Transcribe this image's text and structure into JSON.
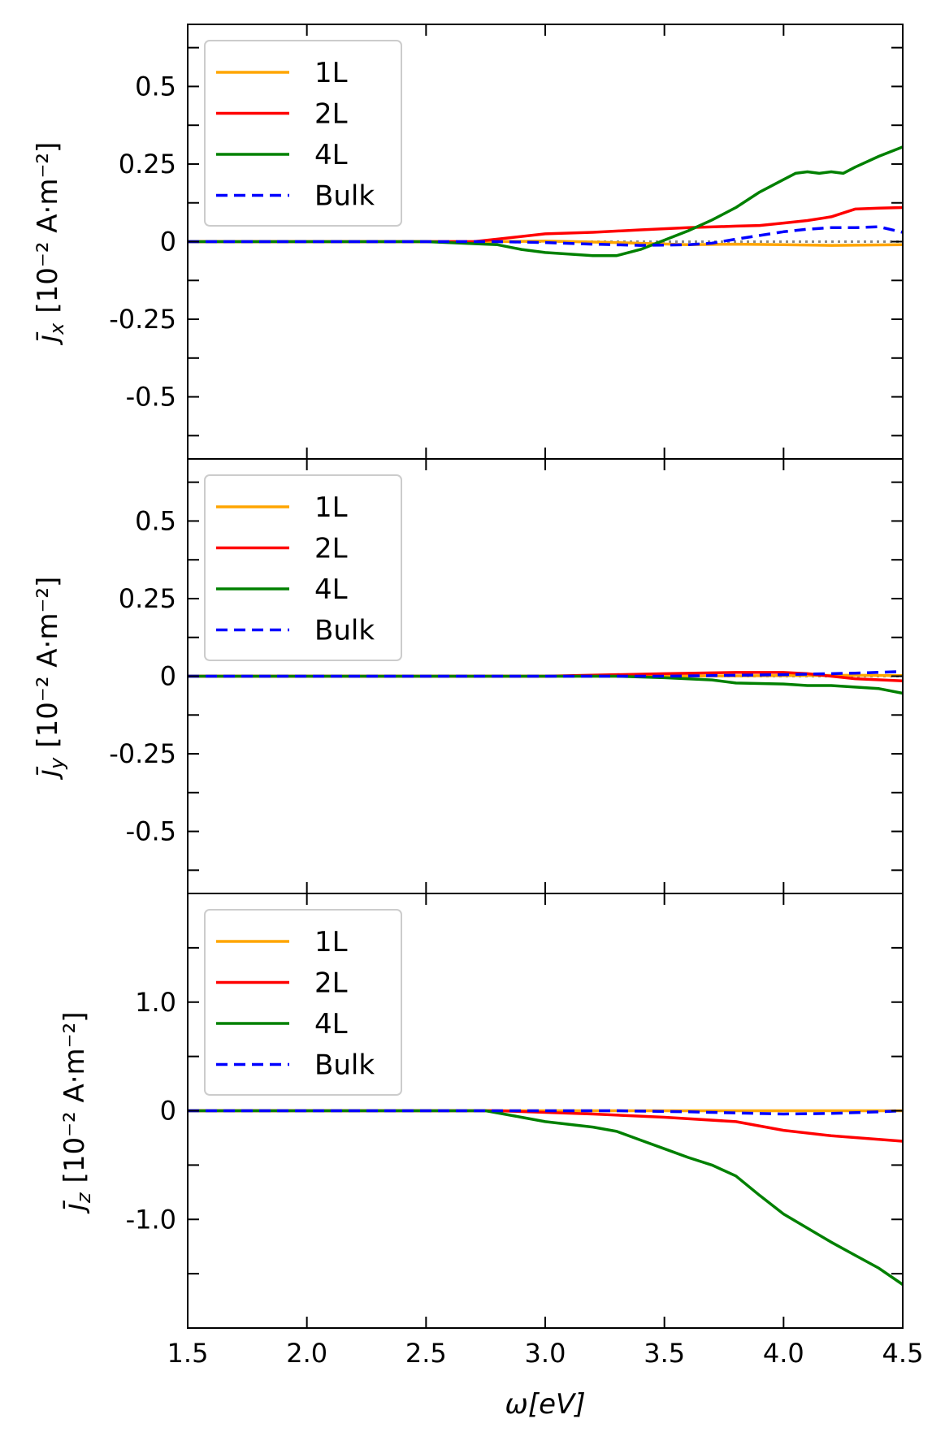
{
  "chart_data": [
    {
      "type": "line",
      "panel": "top",
      "ylabel": {
        "prefix": "j̄",
        "sub": "x",
        "text": "[10⁻² A·m⁻²]"
      },
      "xlim": [
        1.5,
        4.5
      ],
      "ylim": [
        -0.7,
        0.7
      ],
      "yticks": [
        -0.5,
        -0.25,
        0,
        0.25,
        0.5
      ],
      "ytick_labels": [
        "-0.5",
        "-0.25",
        "0",
        "0.25",
        "0.5"
      ],
      "legend": {
        "placement": "top-left",
        "entries": [
          "1L",
          "2L",
          "4L",
          "Bulk"
        ]
      },
      "series": [
        {
          "name": "1L",
          "color": "#FFA500",
          "style": "solid",
          "x": [
            1.5,
            2.5,
            2.8,
            3.0,
            3.3,
            3.6,
            3.8,
            4.0,
            4.2,
            4.5
          ],
          "values": [
            0,
            0,
            0,
            0.002,
            -0.003,
            -0.01,
            -0.008,
            -0.01,
            -0.012,
            -0.01
          ]
        },
        {
          "name": "2L",
          "color": "#FF0000",
          "style": "solid",
          "x": [
            1.5,
            2.5,
            2.7,
            2.8,
            3.0,
            3.2,
            3.4,
            3.6,
            3.8,
            3.9,
            4.0,
            4.1,
            4.2,
            4.3,
            4.4,
            4.5
          ],
          "values": [
            0,
            0,
            0,
            0.008,
            0.025,
            0.03,
            0.038,
            0.045,
            0.05,
            0.052,
            0.06,
            0.068,
            0.08,
            0.105,
            0.108,
            0.11
          ]
        },
        {
          "name": "4L",
          "color": "#008000",
          "style": "solid",
          "x": [
            1.5,
            2.5,
            2.8,
            2.9,
            3.0,
            3.2,
            3.3,
            3.4,
            3.5,
            3.6,
            3.7,
            3.8,
            3.9,
            4.0,
            4.05,
            4.1,
            4.15,
            4.2,
            4.25,
            4.3,
            4.4,
            4.5
          ],
          "values": [
            0,
            0,
            -0.01,
            -0.025,
            -0.035,
            -0.045,
            -0.045,
            -0.025,
            0.005,
            0.035,
            0.07,
            0.11,
            0.16,
            0.2,
            0.22,
            0.225,
            0.22,
            0.225,
            0.22,
            0.24,
            0.275,
            0.305
          ]
        },
        {
          "name": "Bulk",
          "color": "#0000FF",
          "style": "dashed",
          "x": [
            1.5,
            2.8,
            3.0,
            3.2,
            3.4,
            3.6,
            3.7,
            3.8,
            3.9,
            4.0,
            4.1,
            4.2,
            4.3,
            4.4,
            4.5
          ],
          "values": [
            0,
            0,
            -0.003,
            -0.008,
            -0.012,
            -0.01,
            -0.005,
            0.008,
            0.02,
            0.032,
            0.04,
            0.045,
            0.045,
            0.048,
            0.03
          ]
        }
      ]
    },
    {
      "type": "line",
      "panel": "middle",
      "ylabel": {
        "prefix": "j̄",
        "sub": "y",
        "text": "[10⁻² A·m⁻²]"
      },
      "xlim": [
        1.5,
        4.5
      ],
      "ylim": [
        -0.7,
        0.7
      ],
      "yticks": [
        -0.5,
        -0.25,
        0,
        0.25,
        0.5
      ],
      "ytick_labels": [
        "-0.5",
        "-0.25",
        "0",
        "0.25",
        "0.5"
      ],
      "legend": {
        "placement": "top-left",
        "entries": [
          "1L",
          "2L",
          "4L",
          "Bulk"
        ]
      },
      "series": [
        {
          "name": "1L",
          "color": "#FFA500",
          "style": "solid",
          "x": [
            1.5,
            3.5,
            4.0,
            4.3,
            4.5
          ],
          "values": [
            0,
            0,
            0.002,
            0.003,
            0.002
          ]
        },
        {
          "name": "2L",
          "color": "#FF0000",
          "style": "solid",
          "x": [
            1.5,
            3.0,
            3.5,
            3.8,
            4.0,
            4.1,
            4.2,
            4.3,
            4.5
          ],
          "values": [
            0,
            0,
            0.008,
            0.012,
            0.012,
            0.008,
            0.0,
            -0.008,
            -0.015
          ]
        },
        {
          "name": "4L",
          "color": "#008000",
          "style": "solid",
          "x": [
            1.5,
            3.3,
            3.5,
            3.7,
            3.8,
            4.0,
            4.1,
            4.2,
            4.3,
            4.4,
            4.5
          ],
          "values": [
            0,
            0,
            -0.005,
            -0.012,
            -0.022,
            -0.025,
            -0.03,
            -0.03,
            -0.035,
            -0.04,
            -0.055
          ]
        },
        {
          "name": "Bulk",
          "color": "#0000FF",
          "style": "dashed",
          "x": [
            1.5,
            3.5,
            4.0,
            4.3,
            4.5
          ],
          "values": [
            0,
            0,
            0.005,
            0.01,
            0.015
          ]
        }
      ]
    },
    {
      "type": "line",
      "panel": "bottom",
      "ylabel": {
        "prefix": "j̄",
        "sub": "z",
        "text": "[10⁻² A·m⁻²]"
      },
      "xlabel": "ω[eV]",
      "xlim": [
        1.5,
        4.5
      ],
      "ylim": [
        -2.0,
        2.0
      ],
      "xticks": [
        1.5,
        2.0,
        2.5,
        3.0,
        3.5,
        4.0,
        4.5
      ],
      "xtick_labels": [
        "1.5",
        "2.0",
        "2.5",
        "3.0",
        "3.5",
        "4.0",
        "4.5"
      ],
      "yticks": [
        -1.0,
        0,
        1.0
      ],
      "ytick_labels": [
        "-1.0",
        "0",
        "1.0"
      ],
      "legend": {
        "placement": "top-left",
        "entries": [
          "1L",
          "2L",
          "4L",
          "Bulk"
        ]
      },
      "series": [
        {
          "name": "1L",
          "color": "#FFA500",
          "style": "solid",
          "x": [
            1.5,
            4.5
          ],
          "values": [
            0,
            0
          ]
        },
        {
          "name": "2L",
          "color": "#FF0000",
          "style": "solid",
          "x": [
            1.5,
            2.8,
            3.2,
            3.5,
            3.8,
            4.0,
            4.2,
            4.5
          ],
          "values": [
            0,
            0,
            -0.03,
            -0.06,
            -0.1,
            -0.18,
            -0.23,
            -0.28
          ]
        },
        {
          "name": "4L",
          "color": "#008000",
          "style": "solid",
          "x": [
            1.5,
            2.75,
            2.9,
            3.0,
            3.2,
            3.3,
            3.4,
            3.5,
            3.6,
            3.7,
            3.8,
            3.9,
            4.0,
            4.1,
            4.2,
            4.3,
            4.4,
            4.5
          ],
          "values": [
            0,
            0,
            -0.06,
            -0.1,
            -0.15,
            -0.19,
            -0.27,
            -0.35,
            -0.43,
            -0.5,
            -0.6,
            -0.78,
            -0.95,
            -1.08,
            -1.21,
            -1.33,
            -1.45,
            -1.6
          ]
        },
        {
          "name": "Bulk",
          "color": "#0000FF",
          "style": "dashed",
          "x": [
            1.5,
            3.3,
            3.6,
            3.8,
            4.0,
            4.2,
            4.4,
            4.5
          ],
          "values": [
            0,
            0,
            -0.01,
            -0.02,
            -0.03,
            -0.025,
            -0.01,
            0
          ]
        }
      ]
    }
  ]
}
